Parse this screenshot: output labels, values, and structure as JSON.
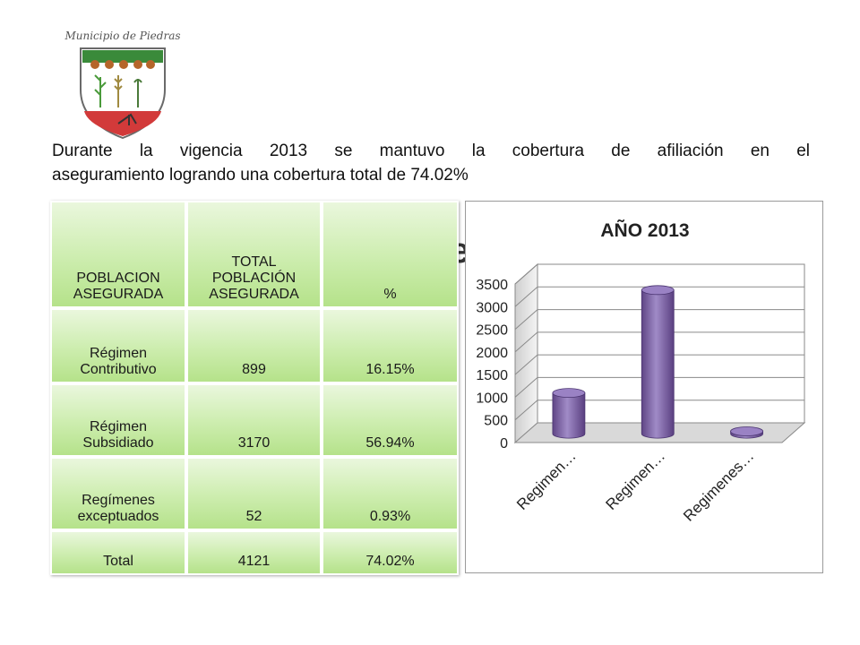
{
  "logo": {
    "text": "Municipio de Piedras"
  },
  "intro": {
    "line1": "Durante la vigencia 2013 se mantuvo la  cobertura de afiliación en el",
    "line2": "aseguramiento logrando una  cobertura total de 74.02%"
  },
  "table": {
    "headers": [
      "POBLACION ASEGURADA",
      "TOTAL POBLACIÓN ASEGURADA",
      "%"
    ],
    "rows": [
      {
        "label": "Régimen Contributivo",
        "total": "899",
        "pct": "16.15%"
      },
      {
        "label": "Régimen Subsidiado",
        "total": "3170",
        "pct": "56.94%"
      },
      {
        "label": "Regímenes exceptuados",
        "total": "52",
        "pct": "0.93%"
      },
      {
        "label": "Total",
        "total": "4121",
        "pct": "74.02%"
      }
    ]
  },
  "ghost_text": "e",
  "chart_data": {
    "type": "bar",
    "title": "AÑO 2013",
    "categories": [
      "Regimen…",
      "Regimen…",
      "Regimenes…"
    ],
    "values": [
      899,
      3170,
      52
    ],
    "ylim": [
      0,
      3500
    ],
    "yticks": [
      0,
      500,
      1000,
      1500,
      2000,
      2500,
      3000,
      3500
    ],
    "grid": true,
    "legend": "none",
    "bar_color": "#8064a2",
    "style": "3d-cylinder"
  }
}
